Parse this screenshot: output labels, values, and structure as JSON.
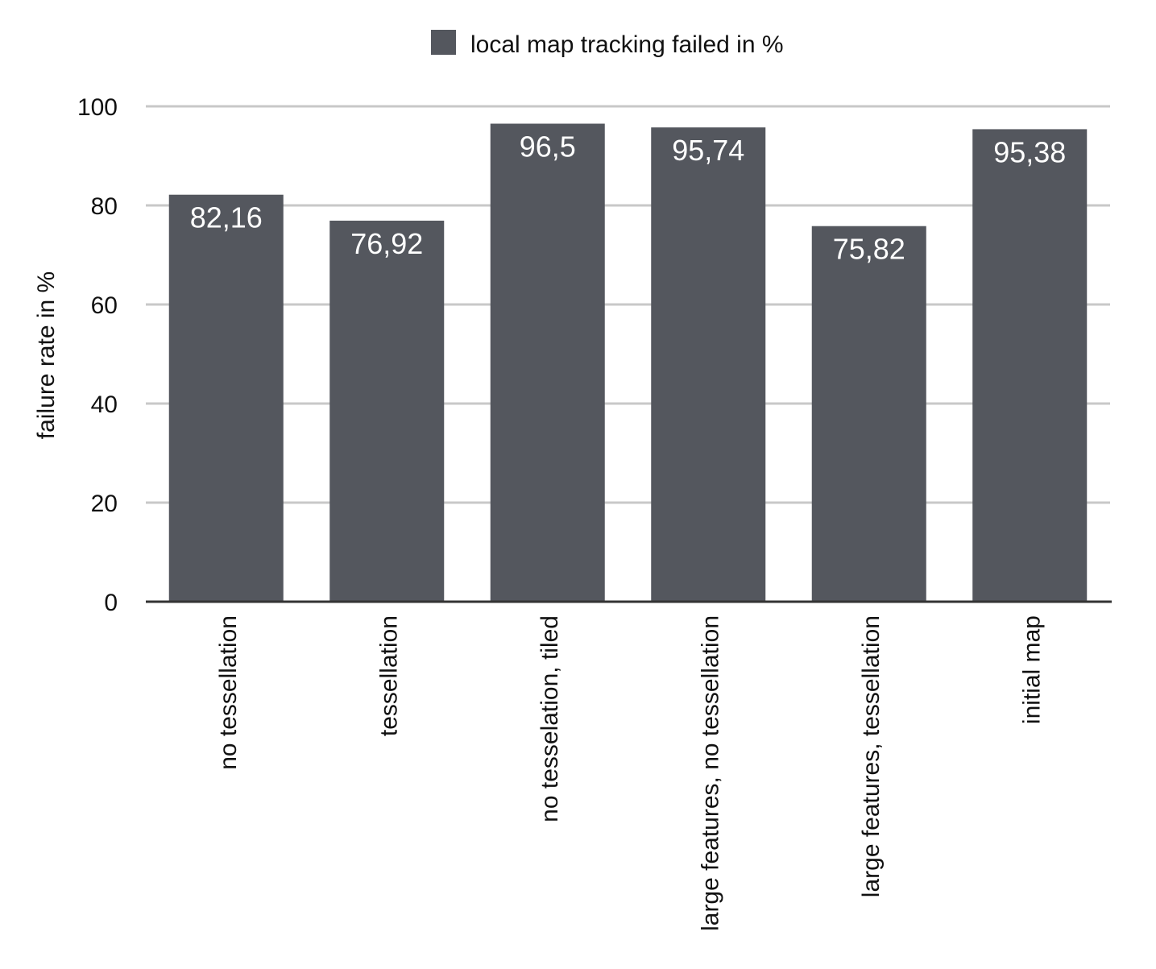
{
  "chart_data": {
    "type": "bar",
    "categories": [
      "no tessellation",
      "tessellation",
      "no tesselation, tiled",
      "large features, no tessellation",
      "large features, tessellation",
      "initial map"
    ],
    "series": [
      {
        "name": "local map tracking failed in %",
        "values": [
          82.16,
          76.92,
          96.5,
          95.74,
          75.82,
          95.38
        ],
        "labels": [
          "82,16",
          "76,92",
          "96,5",
          "95,74",
          "75,82",
          "95,38"
        ],
        "color": "#54575e"
      }
    ],
    "title": "",
    "xlabel": "",
    "ylabel": "failure rate in %",
    "ylim": [
      0,
      100
    ],
    "yticks": [
      0,
      20,
      40,
      60,
      80,
      100
    ],
    "grid": true,
    "legend_position": "top-center",
    "colors": {
      "bar": "#54575e",
      "grid": "#c8c8c8",
      "axis": "#333333",
      "value_text": "#ffffff"
    }
  }
}
